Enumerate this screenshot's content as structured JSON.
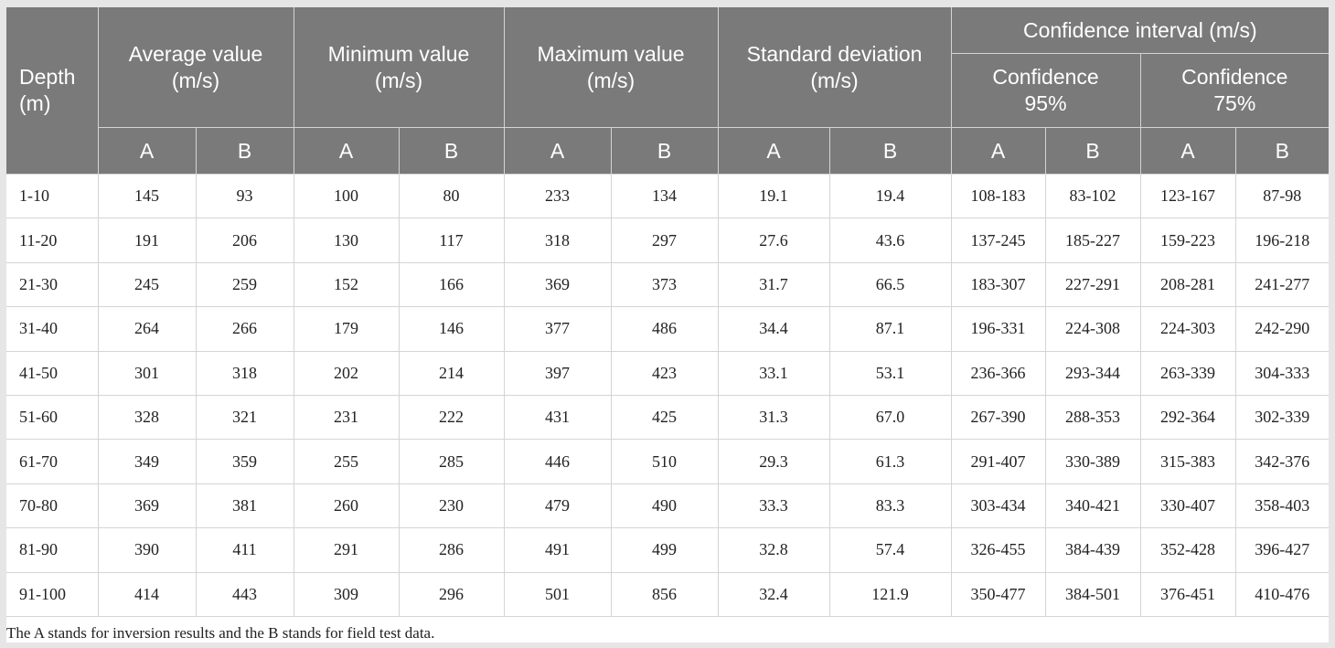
{
  "table": {
    "header": {
      "depth": "Depth\n(m)",
      "groups": [
        "Average value\n(m/s)",
        "Minimum value\n(m/s)",
        "Maximum value\n(m/s)",
        "Standard deviation\n(m/s)"
      ],
      "confidence_group": "Confidence interval (m/s)",
      "confidence_subgroups": [
        "Confidence\n95%",
        "Confidence\n75%"
      ],
      "sub_labels": [
        "A",
        "B",
        "A",
        "B",
        "A",
        "B",
        "A",
        "B",
        "A",
        "B",
        "A",
        "B"
      ]
    },
    "rows": [
      [
        "1-10",
        "145",
        "93",
        "100",
        "80",
        "233",
        "134",
        "19.1",
        "19.4",
        "108-183",
        "83-102",
        "123-167",
        "87-98"
      ],
      [
        "11-20",
        "191",
        "206",
        "130",
        "117",
        "318",
        "297",
        "27.6",
        "43.6",
        "137-245",
        "185-227",
        "159-223",
        "196-218"
      ],
      [
        "21-30",
        "245",
        "259",
        "152",
        "166",
        "369",
        "373",
        "31.7",
        "66.5",
        "183-307",
        "227-291",
        "208-281",
        "241-277"
      ],
      [
        "31-40",
        "264",
        "266",
        "179",
        "146",
        "377",
        "486",
        "34.4",
        "87.1",
        "196-331",
        "224-308",
        "224-303",
        "242-290"
      ],
      [
        "41-50",
        "301",
        "318",
        "202",
        "214",
        "397",
        "423",
        "33.1",
        "53.1",
        "236-366",
        "293-344",
        "263-339",
        "304-333"
      ],
      [
        "51-60",
        "328",
        "321",
        "231",
        "222",
        "431",
        "425",
        "31.3",
        "67.0",
        "267-390",
        "288-353",
        "292-364",
        "302-339"
      ],
      [
        "61-70",
        "349",
        "359",
        "255",
        "285",
        "446",
        "510",
        "29.3",
        "61.3",
        "291-407",
        "330-389",
        "315-383",
        "342-376"
      ],
      [
        "70-80",
        "369",
        "381",
        "260",
        "230",
        "479",
        "490",
        "33.3",
        "83.3",
        "303-434",
        "340-421",
        "330-407",
        "358-403"
      ],
      [
        "81-90",
        "390",
        "411",
        "291",
        "286",
        "491",
        "499",
        "32.8",
        "57.4",
        "326-455",
        "384-439",
        "352-428",
        "396-427"
      ],
      [
        "91-100",
        "414",
        "443",
        "309",
        "296",
        "501",
        "856",
        "32.4",
        "121.9",
        "350-477",
        "384-501",
        "376-451",
        "410-476"
      ]
    ]
  },
  "footnote": "The A stands for inversion results and the B stands for field test data.",
  "colors": {
    "header_bg": "#7a7a7a",
    "header_text": "#ffffff",
    "grid": "#d4d4d4",
    "page_bg": "#e6e6e6"
  }
}
